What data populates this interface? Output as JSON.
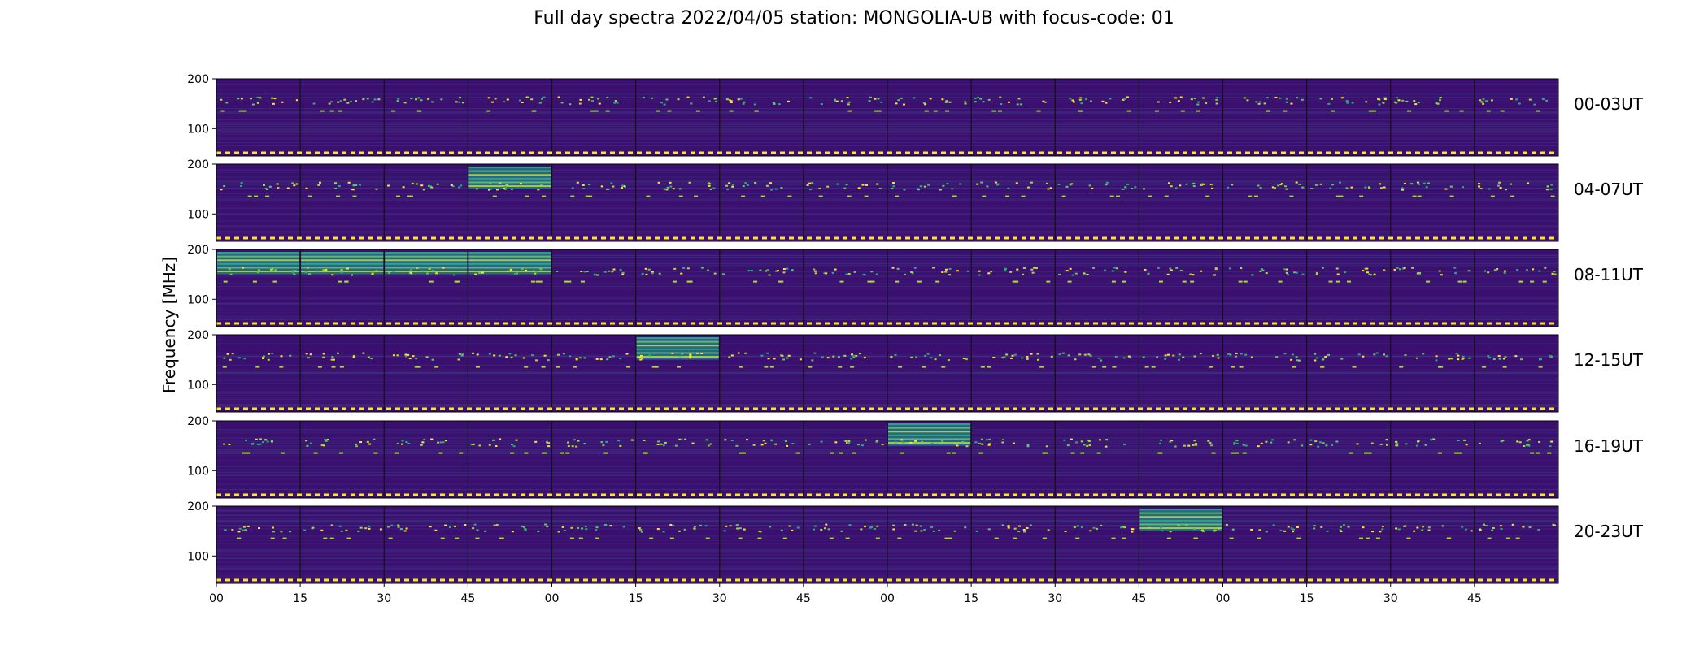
{
  "chart_data": {
    "type": "heatmap",
    "title": "Full day spectra 2022/04/05 station: MONGOLIA-UB with focus-code: 01",
    "ylabel": "Frequency [MHz]",
    "xlabel": "",
    "colormap": "viridis",
    "background_color": "#3b0f70",
    "ylim": [
      45,
      200
    ],
    "ytick_labels": [
      "200",
      "100"
    ],
    "ytick_values": [
      200,
      100
    ],
    "xtick_labels": [
      "00",
      "15",
      "30",
      "45",
      "00",
      "15",
      "30",
      "45",
      "00",
      "15",
      "30",
      "45",
      "00",
      "15",
      "30",
      "45"
    ],
    "columns_per_row": 16,
    "rows": [
      {
        "label": "00-03UT",
        "bright_panels": []
      },
      {
        "label": "04-07UT",
        "bright_panels": [
          3
        ]
      },
      {
        "label": "08-11UT",
        "bright_panels": [
          0,
          1,
          2,
          3
        ]
      },
      {
        "label": "12-15UT",
        "bright_panels": [
          5
        ]
      },
      {
        "label": "16-19UT",
        "bright_panels": [
          8
        ]
      },
      {
        "label": "20-23UT",
        "bright_panels": [
          11
        ]
      }
    ]
  }
}
